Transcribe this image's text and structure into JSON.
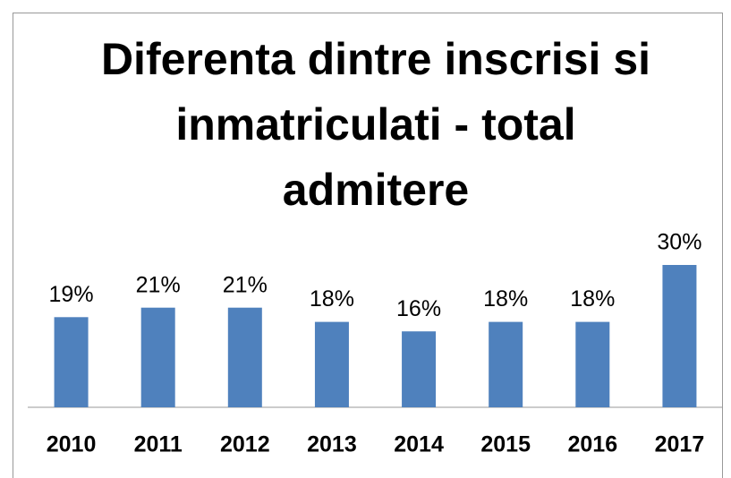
{
  "chart_data": {
    "type": "bar",
    "title": "Diferenta dintre inscrisi si inmatriculati - total admitere",
    "categories": [
      "2010",
      "2011",
      "2012",
      "2013",
      "2014",
      "2015",
      "2016",
      "2017"
    ],
    "values": [
      19,
      21,
      21,
      18,
      16,
      18,
      18,
      30
    ],
    "value_labels": [
      "19%",
      "21%",
      "21%",
      "18%",
      "16%",
      "18%",
      "18%",
      "30%"
    ],
    "color": "#4f81bd"
  }
}
